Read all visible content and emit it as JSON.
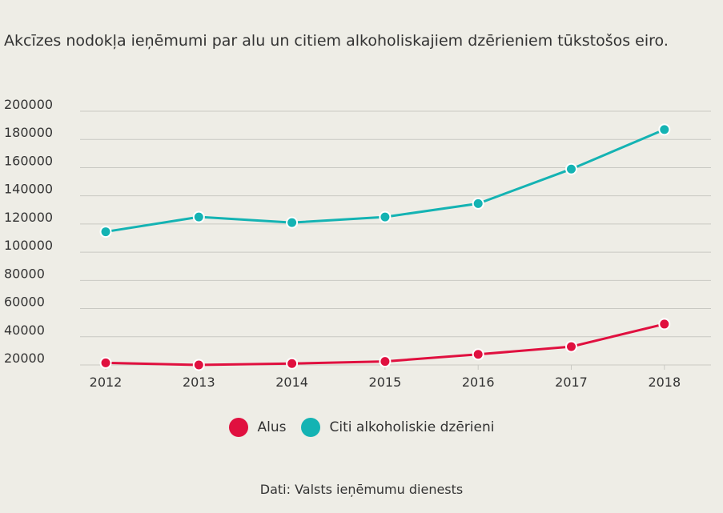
{
  "colors": {
    "background": "#eeede6",
    "grid": "#c9c9c3",
    "text": "#333333",
    "alus": "#e0103f",
    "citi": "#14b3b3"
  },
  "legend": {
    "items": [
      "Alus",
      "Citi alkoholiskie dzērieni"
    ]
  },
  "source": "Dati: Valsts ieņēmumu dienests",
  "chart_data": {
    "type": "line",
    "title": "Akcīzes nodokļa ieņēmumi par alu un citiem alkoholiskajiem dzērieniem tūkstošos eiro.",
    "xlabel": "",
    "ylabel": "",
    "categories": [
      "2012",
      "2013",
      "2014",
      "2015",
      "2016",
      "2017",
      "2018"
    ],
    "y_ticks": [
      200000,
      180000,
      160000,
      140000,
      120000,
      100000,
      80000,
      60000,
      40000,
      20000
    ],
    "ylim": [
      15000,
      200000
    ],
    "grid": true,
    "legend_position": "bottom-center",
    "series": [
      {
        "name": "Alus",
        "color": "#e0103f",
        "values": [
          21500,
          20000,
          21000,
          22500,
          27500,
          33000,
          49000
        ]
      },
      {
        "name": "Citi alkoholiskie dzērieni",
        "color": "#14b3b3",
        "values": [
          114500,
          125000,
          121000,
          125000,
          134500,
          159000,
          187000
        ]
      }
    ]
  }
}
